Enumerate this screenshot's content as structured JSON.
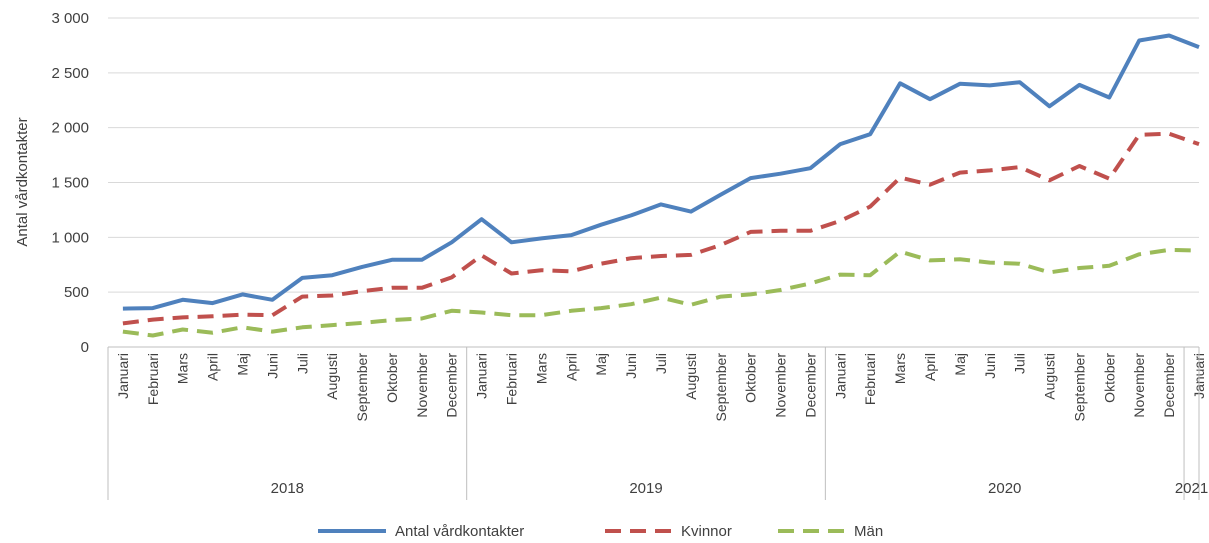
{
  "chart_data": {
    "type": "line",
    "title": "",
    "xlabel": "",
    "ylabel": "Antal vårdkontakter",
    "ylim": [
      0,
      3000
    ],
    "yticks": [
      0,
      500,
      1000,
      1500,
      2000,
      2500,
      3000
    ],
    "ytick_labels": [
      "0",
      "500",
      "1 000",
      "1 500",
      "2 000",
      "2 500",
      "3 000"
    ],
    "grid": true,
    "legend_position": "bottom",
    "categories": [
      "Januari",
      "Februari",
      "Mars",
      "April",
      "Maj",
      "Juni",
      "Juli",
      "Augusti",
      "September",
      "Oktober",
      "November",
      "December",
      "Januari",
      "Februari",
      "Mars",
      "April",
      "Maj",
      "Juni",
      "Juli",
      "Augusti",
      "September",
      "Oktober",
      "November",
      "December",
      "Januari",
      "Februari",
      "Mars",
      "April",
      "Maj",
      "Juni",
      "Juli",
      "Augusti",
      "September",
      "Oktober",
      "November",
      "December",
      "Januari"
    ],
    "groups": [
      {
        "label": "2018",
        "count": 12
      },
      {
        "label": "2019",
        "count": 12
      },
      {
        "label": "2020",
        "count": 12
      },
      {
        "label": "2021",
        "count": 1
      }
    ],
    "series": [
      {
        "name": "Antal vårdkontakter",
        "color": "#4F81BD",
        "dash": "solid",
        "values": [
          350,
          355,
          430,
          400,
          480,
          430,
          630,
          655,
          730,
          795,
          795,
          955,
          1165,
          955,
          990,
          1020,
          1115,
          1200,
          1300,
          1235,
          1390,
          1540,
          1580,
          1630,
          1850,
          1940,
          2405,
          2260,
          2400,
          2385,
          2415,
          2195,
          2390,
          2275,
          2795,
          2840,
          2735
        ]
      },
      {
        "name": "Kvinnor",
        "color": "#C0504D",
        "dash": "dashed",
        "values": [
          215,
          250,
          270,
          280,
          295,
          290,
          460,
          470,
          510,
          540,
          540,
          635,
          835,
          670,
          700,
          690,
          760,
          810,
          830,
          840,
          930,
          1050,
          1060,
          1060,
          1150,
          1280,
          1545,
          1480,
          1590,
          1610,
          1640,
          1520,
          1650,
          1535,
          1935,
          1945,
          1850
        ]
      },
      {
        "name": "Män",
        "color": "#9BBB59",
        "dash": "dashed",
        "values": [
          140,
          105,
          160,
          130,
          180,
          140,
          180,
          200,
          220,
          245,
          260,
          330,
          315,
          290,
          290,
          330,
          355,
          390,
          450,
          385,
          460,
          480,
          520,
          580,
          660,
          655,
          870,
          790,
          800,
          770,
          760,
          680,
          720,
          740,
          845,
          885,
          880
        ]
      }
    ]
  }
}
